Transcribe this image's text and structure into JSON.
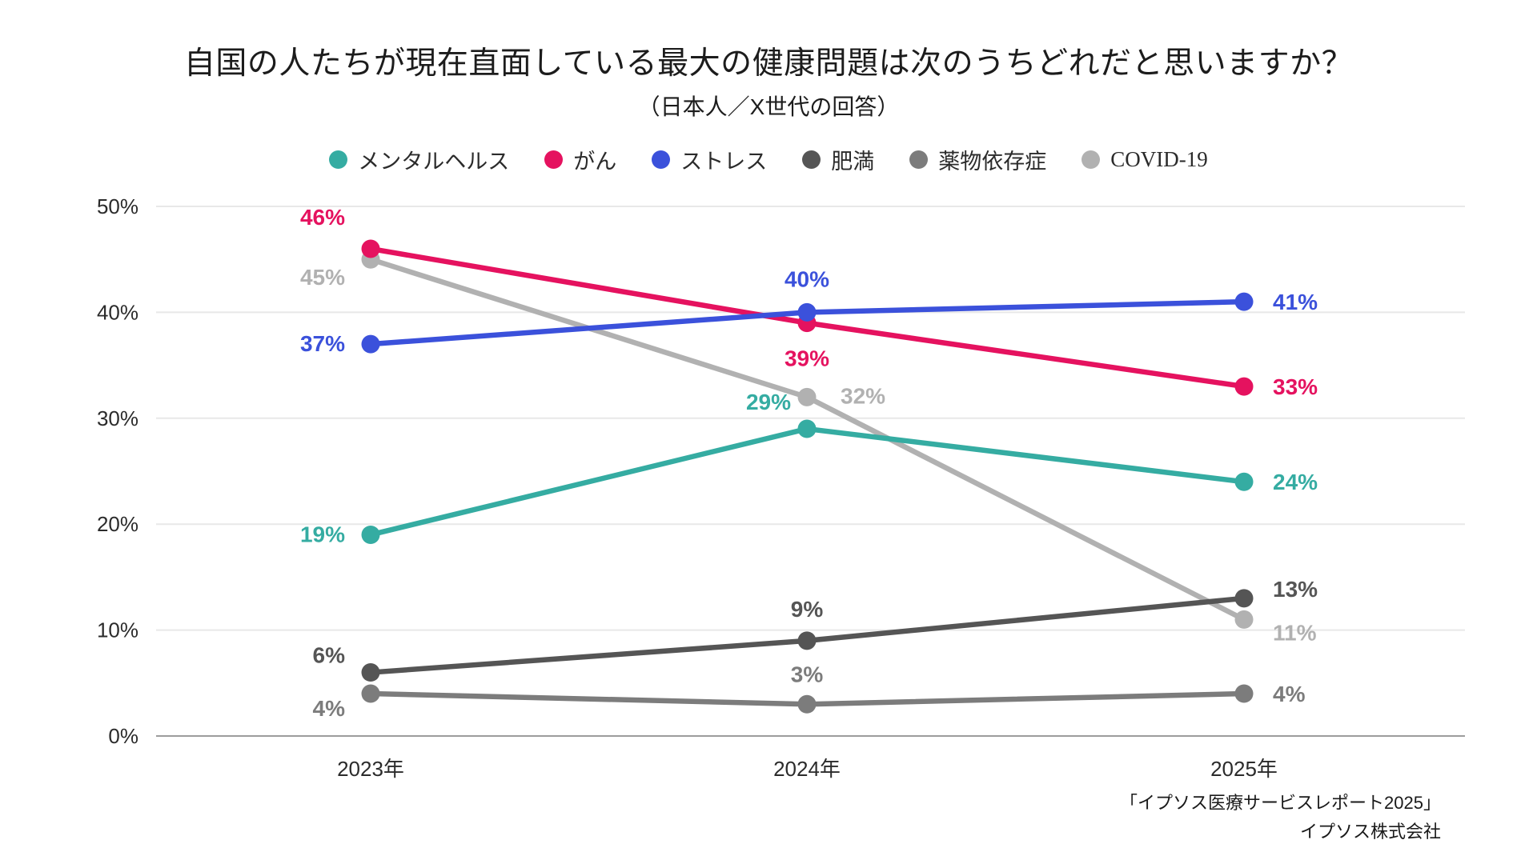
{
  "header": {
    "title": "自国の人たちが現在直面している最大の健康問題は次のうちどれだと思いますか？",
    "subtitle": "（日本人／X世代の回答）"
  },
  "source": {
    "line1": "「イプソス医療サービスレポート2025」",
    "line2": "イプソス株式会社"
  },
  "chart_data": {
    "type": "line",
    "categories": [
      "2023年",
      "2024年",
      "2025年"
    ],
    "series": [
      {
        "name": "メンタルヘルス",
        "color": "#35ACA2",
        "values": [
          19,
          29,
          24
        ]
      },
      {
        "name": "がん",
        "color": "#E5125F",
        "values": [
          46,
          39,
          33
        ]
      },
      {
        "name": "ストレス",
        "color": "#3B51DB",
        "values": [
          37,
          40,
          41
        ]
      },
      {
        "name": "肥満",
        "color": "#555555",
        "values": [
          6,
          9,
          13
        ]
      },
      {
        "name": "薬物依存症",
        "color": "#7C7C7C",
        "values": [
          4,
          3,
          4
        ]
      },
      {
        "name": "COVID-19",
        "color": "#B1B1B1",
        "values": [
          45,
          32,
          11
        ]
      }
    ],
    "title": "自国の人たちが現在直面している最大の健康問題は次のうちどれだと思いますか？",
    "subtitle": "（日本人／X世代の回答）",
    "xlabel": "",
    "ylabel": "",
    "ylim": [
      0,
      50
    ],
    "yticks": [
      "0%",
      "10%",
      "20%",
      "30%",
      "40%",
      "50%"
    ],
    "value_label_suffix": "%",
    "grid": true,
    "legend_position": "top",
    "colors": {
      "gridline": "#E8E8E8",
      "baseline": "#9C9C9C",
      "axis_text": "#2B2B2B",
      "background": "#FFFFFF"
    }
  }
}
